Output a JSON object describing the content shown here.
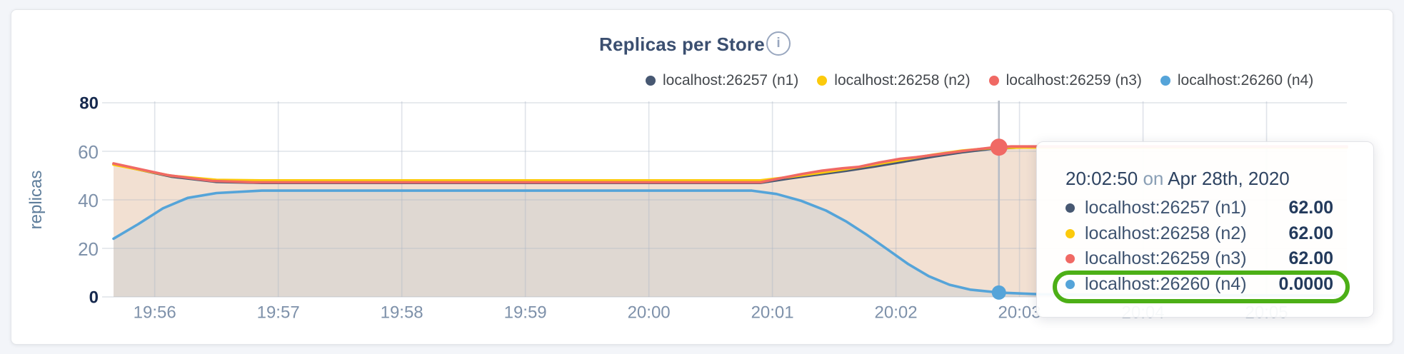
{
  "header": {
    "title": "Replicas per Store",
    "info_icon": "i"
  },
  "chart_data": {
    "type": "area",
    "title": "Replicas per Store",
    "xlabel": "",
    "ylabel": "replicas",
    "ylim": [
      0,
      80
    ],
    "yticks": [
      0,
      20,
      40,
      60,
      80
    ],
    "x_unit": "time of day (seconds)",
    "x_range_seconds": [
      71740,
      72339
    ],
    "xticks": [
      {
        "t": 71760,
        "label": "19:56"
      },
      {
        "t": 71820,
        "label": "19:57"
      },
      {
        "t": 71880,
        "label": "19:58"
      },
      {
        "t": 71940,
        "label": "19:59"
      },
      {
        "t": 72000,
        "label": "20:00"
      },
      {
        "t": 72060,
        "label": "20:01"
      },
      {
        "t": 72120,
        "label": "20:02"
      },
      {
        "t": 72180,
        "label": "20:03"
      },
      {
        "t": 72240,
        "label": "20:04"
      },
      {
        "t": 72300,
        "label": "20:05"
      }
    ],
    "grid": true,
    "grid_color": "#aab6c6",
    "legend_position": "top-right",
    "area_colors": {
      "under_top_lines": "#f2e0d2",
      "under_blue_line": "#dfd8d2"
    },
    "hover": {
      "t": 72170,
      "time_label": "20:02:50",
      "line_color": "#b6bcc6",
      "markers": [
        {
          "series": "localhost:26259 (n3)",
          "r": 12
        },
        {
          "series": "localhost:26260 (n4)",
          "r": 10
        }
      ]
    },
    "series": [
      {
        "name": "localhost:26257 (n1)",
        "color": "#475872",
        "points": [
          [
            71740,
            54.7
          ],
          [
            71768,
            49.6
          ],
          [
            71790,
            47.4
          ],
          [
            71812,
            47
          ],
          [
            72054,
            47
          ],
          [
            72068,
            48.8
          ],
          [
            72082,
            50.4
          ],
          [
            72096,
            52
          ],
          [
            72110,
            53.8
          ],
          [
            72124,
            55.8
          ],
          [
            72138,
            57.8
          ],
          [
            72152,
            59.6
          ],
          [
            72166,
            61
          ],
          [
            72182,
            61.7
          ],
          [
            72339,
            61.7
          ]
        ]
      },
      {
        "name": "localhost:26258 (n2)",
        "color": "#fcca0c",
        "points": [
          [
            71740,
            54.5
          ],
          [
            71768,
            49.9
          ],
          [
            71790,
            48.2
          ],
          [
            71812,
            48
          ],
          [
            72054,
            48
          ],
          [
            72068,
            49.4
          ],
          [
            72082,
            51
          ],
          [
            72096,
            52.7
          ],
          [
            72110,
            54.6
          ],
          [
            72124,
            56.6
          ],
          [
            72138,
            58.6
          ],
          [
            72152,
            60.3
          ],
          [
            72166,
            61.3
          ],
          [
            72180,
            61.6
          ],
          [
            72339,
            61.6
          ]
        ]
      },
      {
        "name": "localhost:26259 (n3)",
        "color": "#f06964",
        "points": [
          [
            71740,
            55
          ],
          [
            71766,
            50.2
          ],
          [
            71788,
            47.8
          ],
          [
            71808,
            47.2
          ],
          [
            72054,
            47.2
          ],
          [
            72064,
            48.9
          ],
          [
            72074,
            50.6
          ],
          [
            72084,
            52
          ],
          [
            72094,
            53
          ],
          [
            72102,
            53.6
          ],
          [
            72112,
            55.4
          ],
          [
            72122,
            56.9
          ],
          [
            72130,
            57.6
          ],
          [
            72142,
            58.9
          ],
          [
            72154,
            60.3
          ],
          [
            72166,
            61.5
          ],
          [
            72176,
            62
          ],
          [
            72339,
            62
          ]
        ]
      },
      {
        "name": "localhost:26260 (n4)",
        "color": "#55a4d9",
        "points": [
          [
            71740,
            24
          ],
          [
            71752,
            30
          ],
          [
            71764,
            36.5
          ],
          [
            71776,
            40.8
          ],
          [
            71790,
            42.8
          ],
          [
            71812,
            43.8
          ],
          [
            72050,
            43.8
          ],
          [
            72062,
            42.4
          ],
          [
            72074,
            39.6
          ],
          [
            72086,
            35.6
          ],
          [
            72096,
            31
          ],
          [
            72106,
            25.5
          ],
          [
            72116,
            19.5
          ],
          [
            72126,
            13.5
          ],
          [
            72136,
            8.5
          ],
          [
            72146,
            5
          ],
          [
            72156,
            3
          ],
          [
            72170,
            1.8
          ],
          [
            72190,
            1.1
          ],
          [
            72220,
            0.8
          ],
          [
            72339,
            0.6
          ]
        ]
      }
    ]
  },
  "tooltip": {
    "time": "20:02:50",
    "connector": "on",
    "date": "Apr 28th, 2020",
    "highlight_color": "#4caf16",
    "rows": [
      {
        "label": "localhost:26257 (n1)",
        "value": "62.00",
        "color": "#475872",
        "highlighted": false
      },
      {
        "label": "localhost:26258 (n2)",
        "value": "62.00",
        "color": "#fcca0c",
        "highlighted": false
      },
      {
        "label": "localhost:26259 (n3)",
        "value": "62.00",
        "color": "#f06964",
        "highlighted": false
      },
      {
        "label": "localhost:26260 (n4)",
        "value": "0.0000",
        "color": "#55a4d9",
        "highlighted": true
      }
    ]
  }
}
